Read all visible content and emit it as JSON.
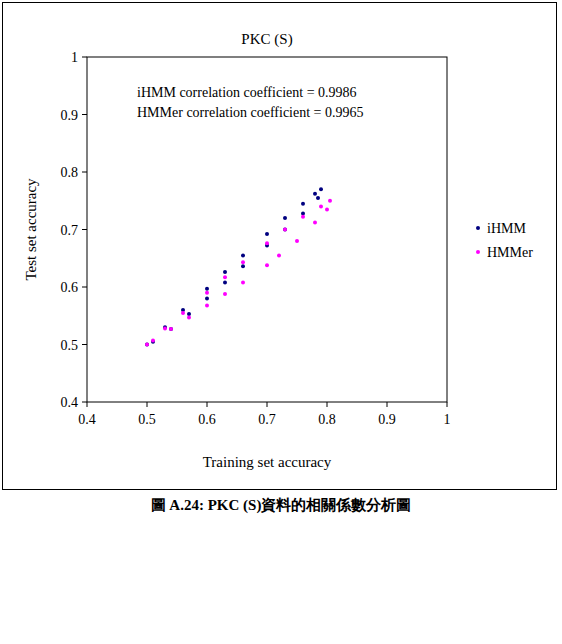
{
  "chart_data": {
    "type": "scatter",
    "title": "PKC (S)",
    "x_label": "Training set accuracy",
    "y_label": "Test set accuracy",
    "annotations": [
      "iHMM correlation coefficient = 0.9986",
      "HMMer correlation coefficient = 0.9965"
    ],
    "caption": "圖 A.24: PKC (S)資料的相關係數分析圖",
    "xlim": [
      0.4,
      1
    ],
    "ylim": [
      0.4,
      1
    ],
    "xticks": [
      0.4,
      0.5,
      0.6,
      0.7,
      0.8,
      0.9,
      1
    ],
    "yticks": [
      0.4,
      0.5,
      0.6,
      0.7,
      0.8,
      0.9,
      1
    ],
    "grid": false,
    "legend": "right",
    "marker": "dot",
    "series": [
      {
        "name": "iHMM",
        "color": "#000080",
        "x": [
          0.5,
          0.53,
          0.56,
          0.6,
          0.63,
          0.66,
          0.7,
          0.73,
          0.76,
          0.78,
          0.79,
          0.785,
          0.76,
          0.73,
          0.7,
          0.66,
          0.63,
          0.6,
          0.57,
          0.54,
          0.51
        ],
        "values": [
          0.5,
          0.53,
          0.56,
          0.597,
          0.626,
          0.655,
          0.692,
          0.72,
          0.745,
          0.762,
          0.77,
          0.755,
          0.728,
          0.7,
          0.672,
          0.636,
          0.608,
          0.58,
          0.553,
          0.527,
          0.505
        ]
      },
      {
        "name": "HMMer",
        "color": "#ff00ff",
        "x": [
          0.5,
          0.53,
          0.56,
          0.6,
          0.63,
          0.66,
          0.7,
          0.73,
          0.76,
          0.79,
          0.805,
          0.8,
          0.78,
          0.75,
          0.72,
          0.7,
          0.66,
          0.63,
          0.6,
          0.57,
          0.54,
          0.51
        ],
        "values": [
          0.5,
          0.528,
          0.555,
          0.59,
          0.617,
          0.643,
          0.676,
          0.7,
          0.722,
          0.74,
          0.75,
          0.735,
          0.712,
          0.68,
          0.655,
          0.638,
          0.608,
          0.588,
          0.568,
          0.547,
          0.527,
          0.507
        ]
      }
    ]
  }
}
